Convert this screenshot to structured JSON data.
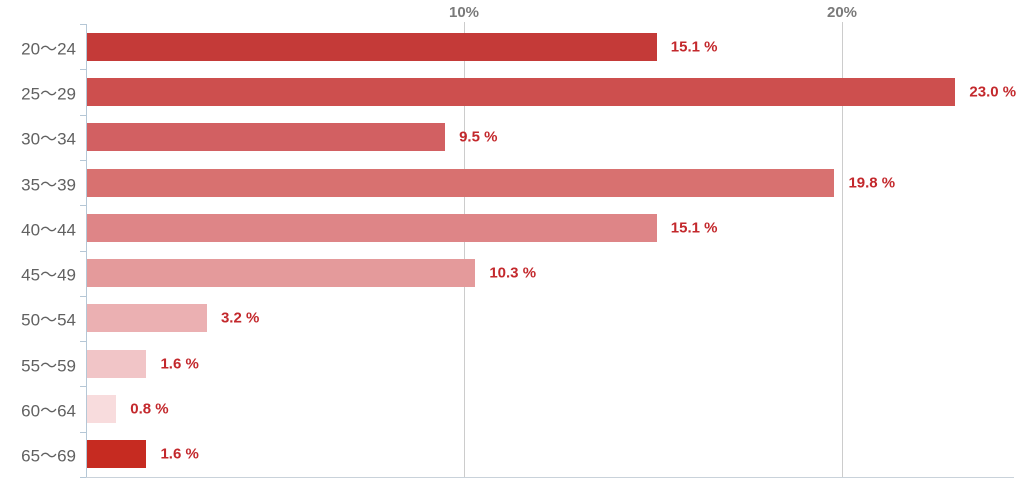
{
  "chart_data": {
    "type": "bar",
    "orientation": "horizontal",
    "title": "",
    "xlabel": "",
    "ylabel": "",
    "categories": [
      "20〜24",
      "25〜29",
      "30〜34",
      "35〜39",
      "40〜44",
      "45〜49",
      "50〜54",
      "55〜59",
      "60〜64",
      "65〜69"
    ],
    "values": [
      15.1,
      23.0,
      9.5,
      19.8,
      15.1,
      10.3,
      3.2,
      1.6,
      0.8,
      1.6
    ],
    "value_labels": [
      "15.1 %",
      "23.0 %",
      "9.5 %",
      "19.8 %",
      "15.1 %",
      "10.3 %",
      "3.2 %",
      "1.6 %",
      "0.8 %",
      "1.6 %"
    ],
    "bar_colors": [
      "#c43a38",
      "#cd4f4e",
      "#d26062",
      "#d87170",
      "#de8587",
      "#e49a9b",
      "#ebb0b2",
      "#f1c5c7",
      "#f8dcdd",
      "#c62b21"
    ],
    "x_ticks": [
      {
        "value": 10,
        "label": "10%"
      },
      {
        "value": 20,
        "label": "20%"
      }
    ],
    "xlim": [
      0,
      24.7
    ],
    "grid": true,
    "legend": "none",
    "value_label_color": "#c3282c",
    "category_label_color": "#616161",
    "tick_label_color": "#7a7a7a",
    "grid_color": "#cccccc",
    "axis_color": "#b5c7d6"
  }
}
